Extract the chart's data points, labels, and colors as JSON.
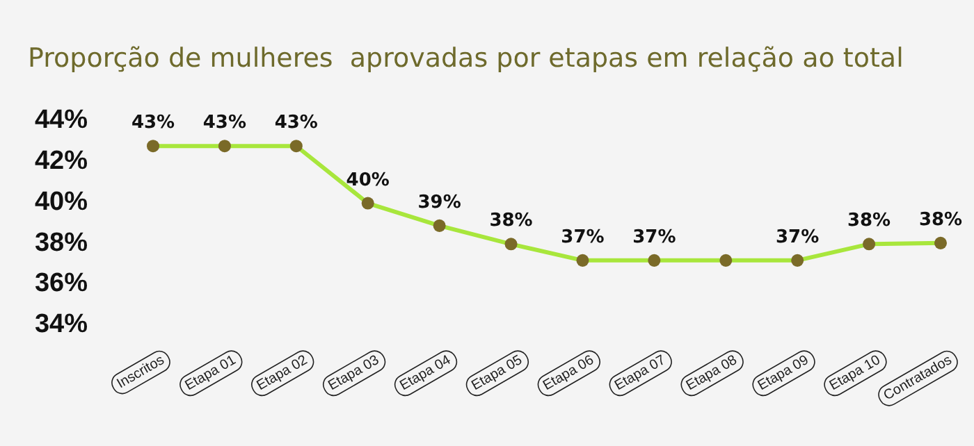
{
  "chart_data": {
    "type": "line",
    "title": "Proporção de mulheres  aprovadas por etapas em relação ao total",
    "categories": [
      "Inscritos",
      "Etapa 01",
      "Etapa 02",
      "Etapa 03",
      "Etapa 04",
      "Etapa 05",
      "Etapa 06",
      "Etapa 07",
      "Etapa 08",
      "Etapa 09",
      "Etapa 10",
      "Contratados"
    ],
    "series": [
      {
        "color": "#a8e63c",
        "values": [
          42.7,
          42.7,
          42.7,
          39.9,
          38.8,
          37.9,
          37.1,
          37.1,
          37.1,
          37.1,
          37.9,
          37.95
        ],
        "value_labels": [
          "43%",
          "43%",
          "43%",
          "40%",
          "39%",
          "38%",
          "37%",
          "37%",
          null,
          "37%",
          "38%",
          "38%"
        ]
      }
    ],
    "ylim": [
      34,
      44
    ],
    "yticks": [
      {
        "value": 34,
        "label": "34%"
      },
      {
        "value": 36,
        "label": "36%"
      },
      {
        "value": 38,
        "label": "38%"
      },
      {
        "value": 40,
        "label": "40%"
      },
      {
        "value": 42,
        "label": "42%"
      },
      {
        "value": 44,
        "label": "44%"
      }
    ],
    "marker": "circle",
    "grid": false
  }
}
